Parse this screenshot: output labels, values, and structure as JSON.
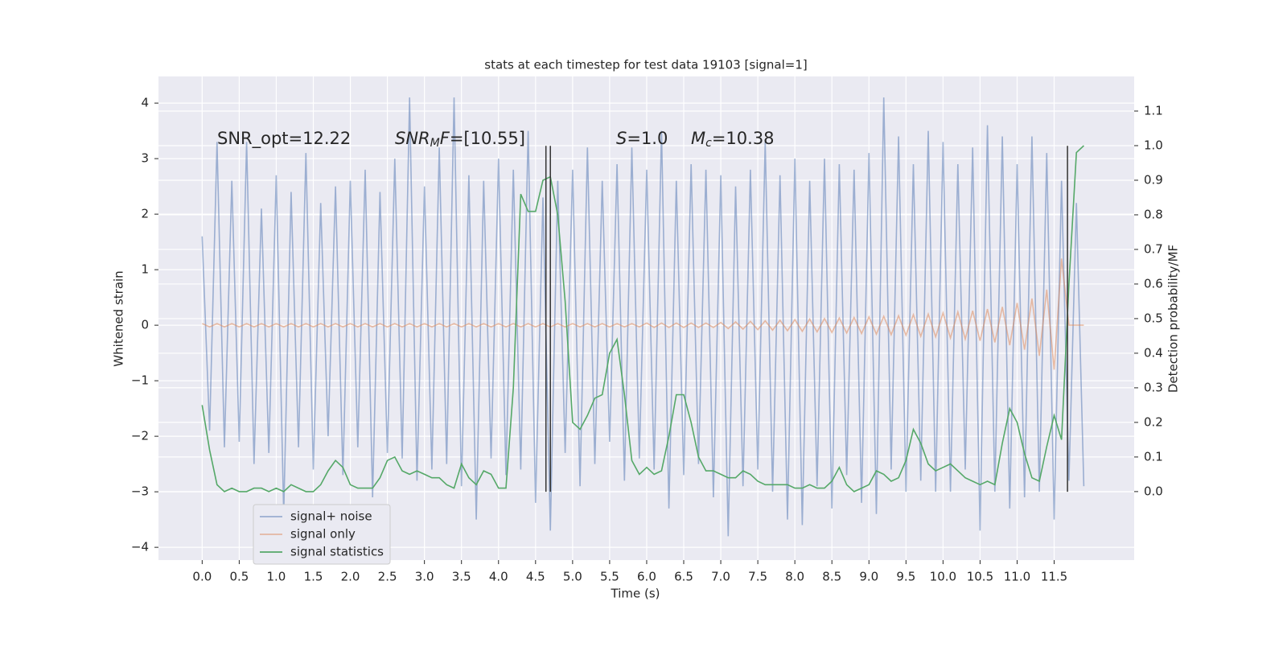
{
  "chart_data": {
    "type": "line",
    "title": "stats at each timestep for test data 19103 [signal=1]",
    "xlabel": "Time (s)",
    "ylabel": "Whitened strain",
    "y2label": "Detection probability/MF",
    "annotations": [
      [
        "SNR_opt=12.22"
      ],
      [
        "SNR",
        "M",
        "F",
        "=[10.55]"
      ],
      [
        "S",
        "=1.0"
      ],
      [
        "M",
        "c",
        "=10.38"
      ]
    ],
    "x": [
      0.0,
      0.1,
      0.2,
      0.3,
      0.4,
      0.5,
      0.6,
      0.7,
      0.8,
      0.9,
      1.0,
      1.1,
      1.2,
      1.3,
      1.4,
      1.5,
      1.6,
      1.7,
      1.8,
      1.9,
      2.0,
      2.1,
      2.2,
      2.3,
      2.4,
      2.5,
      2.6,
      2.7,
      2.8,
      2.9,
      3.0,
      3.1,
      3.2,
      3.3,
      3.4,
      3.5,
      3.6,
      3.7,
      3.8,
      3.9,
      4.0,
      4.1,
      4.2,
      4.3,
      4.4,
      4.5,
      4.6,
      4.7,
      4.8,
      4.9,
      5.0,
      5.1,
      5.2,
      5.3,
      5.4,
      5.5,
      5.6,
      5.7,
      5.8,
      5.9,
      6.0,
      6.1,
      6.2,
      6.3,
      6.4,
      6.5,
      6.6,
      6.7,
      6.8,
      6.9,
      7.0,
      7.1,
      7.2,
      7.3,
      7.4,
      7.5,
      7.6,
      7.7,
      7.8,
      7.9,
      8.0,
      8.1,
      8.2,
      8.3,
      8.4,
      8.5,
      8.6,
      8.7,
      8.8,
      8.9,
      9.0,
      9.1,
      9.2,
      9.3,
      9.4,
      9.5,
      9.6,
      9.7,
      9.8,
      9.9,
      10.0,
      10.1,
      10.2,
      10.3,
      10.4,
      10.5,
      10.6,
      10.7,
      10.8,
      10.9,
      11.0,
      11.1,
      11.2,
      11.3,
      11.4,
      11.5,
      11.6,
      11.7,
      11.8,
      11.9
    ],
    "series": [
      {
        "name": "signal+ noise",
        "color": "#4c72b0",
        "opacity": 0.5,
        "axis": "y",
        "values": [
          1.6,
          -1.9,
          3.3,
          -2.2,
          2.6,
          -2.1,
          3.3,
          -2.5,
          2.1,
          -2.3,
          2.7,
          -3.4,
          2.4,
          -2.2,
          3.1,
          -2.6,
          2.2,
          -2.0,
          2.5,
          -2.7,
          2.6,
          -2.2,
          2.8,
          -3.1,
          2.4,
          -2.3,
          3.0,
          -2.4,
          4.1,
          -2.8,
          2.5,
          -2.6,
          3.2,
          -2.5,
          4.1,
          -2.9,
          2.7,
          -3.5,
          2.6,
          -2.4,
          3.0,
          -2.7,
          2.8,
          -2.6,
          3.5,
          -3.2,
          2.3,
          -3.7,
          2.6,
          -2.3,
          2.8,
          -2.9,
          3.2,
          -2.5,
          2.6,
          -2.1,
          2.9,
          -2.8,
          3.2,
          -2.4,
          2.8,
          -2.6,
          3.5,
          -3.3,
          2.6,
          -2.7,
          2.9,
          -2.5,
          2.8,
          -3.1,
          2.7,
          -3.8,
          2.5,
          -2.9,
          2.8,
          -2.6,
          3.3,
          -3.0,
          2.7,
          -3.5,
          3.0,
          -3.6,
          2.6,
          -2.9,
          3.0,
          -3.3,
          2.9,
          -2.7,
          2.8,
          -3.2,
          3.1,
          -3.4,
          4.1,
          -2.6,
          3.4,
          -3.0,
          2.9,
          -2.8,
          3.5,
          -3.0,
          3.3,
          -3.0,
          2.9,
          -2.6,
          3.2,
          -3.7,
          3.6,
          -3.0,
          3.4,
          -3.3,
          2.9,
          -3.1,
          3.4,
          -3.0,
          3.1,
          -3.5,
          2.6,
          -2.8,
          2.2,
          -2.9
        ]
      },
      {
        "name": "signal only",
        "color": "#dd8452",
        "opacity": 0.5,
        "axis": "y",
        "values": [
          0.03,
          -0.03,
          0.03,
          -0.03,
          0.03,
          -0.03,
          0.03,
          -0.03,
          0.03,
          -0.03,
          0.03,
          -0.03,
          0.03,
          -0.03,
          0.03,
          -0.03,
          0.03,
          -0.03,
          0.03,
          -0.03,
          0.03,
          -0.03,
          0.03,
          -0.03,
          0.03,
          -0.03,
          0.03,
          -0.03,
          0.03,
          -0.03,
          0.03,
          -0.03,
          0.03,
          -0.03,
          0.03,
          -0.03,
          0.03,
          -0.03,
          0.03,
          -0.03,
          0.03,
          -0.03,
          0.03,
          -0.03,
          0.03,
          -0.03,
          0.03,
          -0.03,
          0.03,
          -0.03,
          0.03,
          -0.03,
          0.03,
          -0.03,
          0.03,
          -0.03,
          0.03,
          -0.03,
          0.03,
          -0.03,
          0.04,
          -0.04,
          0.04,
          -0.04,
          0.04,
          -0.04,
          0.04,
          -0.04,
          0.04,
          -0.04,
          0.05,
          -0.06,
          0.06,
          -0.07,
          0.07,
          -0.08,
          0.08,
          -0.09,
          0.09,
          -0.1,
          0.1,
          -0.11,
          0.11,
          -0.12,
          0.12,
          -0.13,
          0.13,
          -0.14,
          0.14,
          -0.15,
          0.15,
          -0.16,
          0.16,
          -0.17,
          0.17,
          -0.18,
          0.19,
          -0.2,
          0.2,
          -0.21,
          0.22,
          -0.23,
          0.24,
          -0.25,
          0.26,
          -0.28,
          0.29,
          -0.31,
          0.33,
          -0.36,
          0.4,
          -0.44,
          0.48,
          -0.55,
          0.64,
          -0.8,
          1.2,
          0,
          0,
          0
        ]
      },
      {
        "name": "signal statistics",
        "color": "#55a868",
        "opacity": 1,
        "axis": "y2",
        "values": [
          0.25,
          0.12,
          0.02,
          0.0,
          0.01,
          0.0,
          0.0,
          0.01,
          0.01,
          0.0,
          0.01,
          0.0,
          0.02,
          0.01,
          0.0,
          0.0,
          0.02,
          0.06,
          0.09,
          0.07,
          0.02,
          0.01,
          0.01,
          0.01,
          0.04,
          0.09,
          0.1,
          0.06,
          0.05,
          0.06,
          0.05,
          0.04,
          0.04,
          0.02,
          0.01,
          0.08,
          0.04,
          0.02,
          0.06,
          0.05,
          0.01,
          0.01,
          0.3,
          0.86,
          0.81,
          0.81,
          0.9,
          0.91,
          0.8,
          0.55,
          0.2,
          0.18,
          0.22,
          0.27,
          0.28,
          0.4,
          0.44,
          0.28,
          0.09,
          0.05,
          0.07,
          0.05,
          0.06,
          0.16,
          0.28,
          0.28,
          0.2,
          0.1,
          0.06,
          0.06,
          0.05,
          0.04,
          0.04,
          0.06,
          0.05,
          0.03,
          0.02,
          0.02,
          0.02,
          0.02,
          0.01,
          0.01,
          0.02,
          0.01,
          0.01,
          0.03,
          0.07,
          0.02,
          0.0,
          0.01,
          0.02,
          0.06,
          0.05,
          0.03,
          0.04,
          0.09,
          0.18,
          0.14,
          0.08,
          0.06,
          0.07,
          0.08,
          0.06,
          0.04,
          0.03,
          0.02,
          0.03,
          0.02,
          0.14,
          0.24,
          0.2,
          0.11,
          0.04,
          0.03,
          0.13,
          0.22,
          0.15,
          0.6,
          0.98,
          1.0
        ]
      }
    ],
    "vlines": {
      "x": [
        4.64,
        4.7,
        11.68
      ],
      "ymin": -3,
      "ymax": 3.23,
      "color": "#333333"
    },
    "xlim": [
      -0.59,
      12.58
    ],
    "xticks": [
      {
        "value": 0,
        "label": "0.0"
      },
      0.5,
      {
        "value": 1,
        "label": "1.0"
      },
      1.5,
      {
        "value": 2,
        "label": "2.0"
      },
      2.5,
      {
        "value": 3,
        "label": "3.0"
      },
      3.5,
      {
        "value": 4,
        "label": "4.0"
      },
      4.5,
      {
        "value": 5,
        "label": "5.0"
      },
      5.5,
      {
        "value": 6,
        "label": "6.0"
      },
      6.5,
      {
        "value": 7,
        "label": "7.0"
      },
      7.5,
      {
        "value": 8,
        "label": "8.0"
      },
      8.5,
      {
        "value": 9,
        "label": "9.0"
      },
      9.5,
      {
        "value": 10,
        "label": "10.0"
      },
      10.5,
      {
        "value": 11,
        "label": "11.0"
      },
      11.5
    ],
    "ylim": [
      -4.23,
      4.48
    ],
    "yticks": [
      {
        "value": -4,
        "label": "−4"
      },
      {
        "value": -3,
        "label": "−3"
      },
      {
        "value": -2,
        "label": "−2"
      },
      {
        "value": -1,
        "label": "−1"
      },
      0,
      1,
      2,
      3,
      4
    ],
    "y2lim": [
      -0.198,
      1.2
    ],
    "y2ticks": [
      {
        "value": 0,
        "label": "0.0"
      },
      0.1,
      0.2,
      0.3,
      0.4,
      0.5,
      0.6,
      0.7,
      0.8,
      0.9,
      {
        "value": 1,
        "label": "1.0"
      },
      1.1
    ],
    "grid": true,
    "legend": "lower left"
  }
}
